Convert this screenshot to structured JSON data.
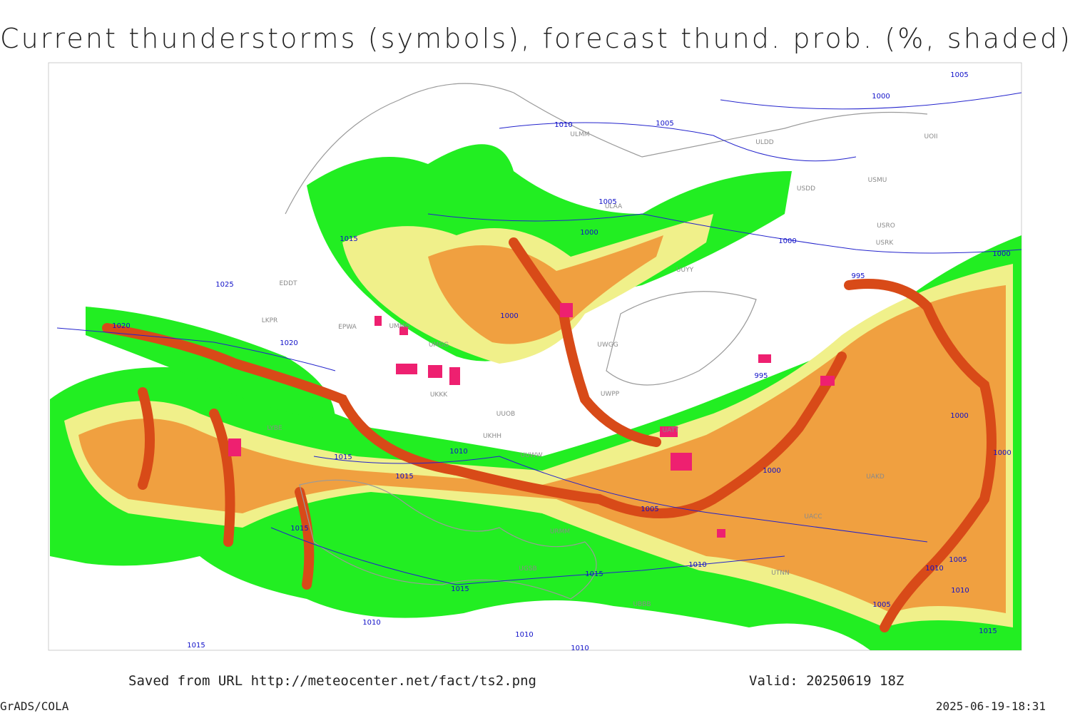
{
  "header": {
    "title": "Current thunderstorms (symbols), forecast thund. prob. (%, shaded)"
  },
  "footer": {
    "source": "Saved from URL http://meteocenter.net/fact/ts2.png",
    "valid": "Valid: 20250619 18Z",
    "software": "GrADS/COLA",
    "timestamp": "2025-06-19-18:31"
  },
  "isobar_labels": [
    "1005",
    "1000",
    "1010",
    "1005",
    "1005",
    "1000",
    "1000",
    "1015",
    "1025",
    "1000",
    "995",
    "1000",
    "1020",
    "1020",
    "995",
    "1000",
    "1000",
    "1015",
    "1010",
    "1015",
    "1000",
    "1005",
    "1015",
    "1010",
    "1015",
    "1015",
    "1005",
    "1010",
    "1010",
    "1005",
    "1010",
    "1010",
    "1015",
    "1010",
    "1015"
  ],
  "station_labels": [
    "ULMM",
    "ULDD",
    "UOII",
    "ULAA",
    "USMU",
    "USDD",
    "USRO",
    "USRK",
    "UUYY",
    "EDDT",
    "EPWA",
    "UMMG",
    "UMGG",
    "UKKK",
    "UUOB",
    "UKHH",
    "LKPR",
    "LYBE",
    "UWGG",
    "UWPP",
    "UATT",
    "UACC",
    "UAKD",
    "URMM",
    "UGSB",
    "UBBB",
    "UTNN",
    "UUWW"
  ]
}
